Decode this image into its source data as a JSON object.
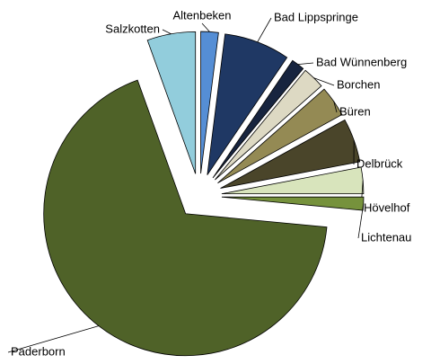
{
  "chart_data": {
    "type": "pie",
    "categories": [
      "Altenbeken",
      "Bad Lippspringe",
      "Bad Wünnenberg",
      "Borchen",
      "Büren",
      "Delbrück",
      "Hövelhof",
      "Lichtenau",
      "Paderborn",
      "Salzkotten"
    ],
    "values": [
      2,
      7.5,
      1.5,
      2.5,
      3.5,
      5,
      3,
      1.5,
      68,
      5.5
    ],
    "colors": [
      "#558ed5",
      "#1f3864",
      "#17243f",
      "#ddd9c3",
      "#948a54",
      "#4a452a",
      "#d8e4bc",
      "#76923c",
      "#4f6228",
      "#92cddc"
    ]
  }
}
